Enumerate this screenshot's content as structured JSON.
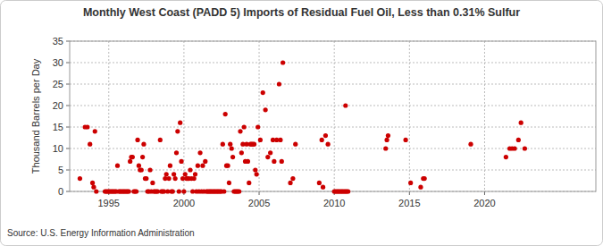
{
  "chart_data": {
    "type": "scatter",
    "title": "Monthly West Coast (PADD 5) Imports of Residual Fuel Oil, Less than 0.31% Sulfur",
    "y_label": "Thousand Barrels per Day",
    "source": "Source: U.S. Energy Information Administration",
    "color": "#cc0000",
    "marker": "circle",
    "grid": true,
    "xlim": [
      1992.4,
      2027.4
    ],
    "xticks": [
      1995,
      2000,
      2005,
      2010,
      2015,
      2020
    ],
    "ylim": [
      0,
      35
    ],
    "yticks": [
      0,
      5,
      10,
      15,
      20,
      25,
      30,
      35
    ],
    "x": [
      1993.08,
      1993.42,
      1993.58,
      1993.75,
      1993.92,
      1994.0,
      1994.08,
      1994.17,
      1994.75,
      1994.83,
      1994.92,
      1995.0,
      1995.08,
      1995.17,
      1995.25,
      1995.33,
      1995.42,
      1995.5,
      1995.58,
      1995.67,
      1995.75,
      1995.83,
      1995.92,
      1996.0,
      1996.08,
      1996.17,
      1996.25,
      1996.33,
      1996.42,
      1996.5,
      1996.58,
      1996.67,
      1996.75,
      1996.83,
      1996.92,
      1997.0,
      1997.08,
      1997.17,
      1997.25,
      1997.33,
      1997.42,
      1997.5,
      1997.58,
      1997.67,
      1997.75,
      1997.83,
      1997.92,
      1998.0,
      1998.08,
      1998.17,
      1998.25,
      1998.42,
      1998.5,
      1998.58,
      1998.67,
      1998.75,
      1998.83,
      1998.92,
      1999.0,
      1999.08,
      1999.17,
      1999.25,
      1999.33,
      1999.42,
      1999.5,
      1999.58,
      1999.67,
      1999.75,
      1999.83,
      1999.92,
      2000.0,
      2000.08,
      2000.17,
      2000.25,
      2000.33,
      2000.42,
      2000.5,
      2000.58,
      2000.67,
      2000.75,
      2000.83,
      2000.92,
      2001.0,
      2001.08,
      2001.17,
      2001.25,
      2001.33,
      2001.42,
      2001.5,
      2001.58,
      2001.67,
      2001.75,
      2001.83,
      2001.92,
      2002.0,
      2002.08,
      2002.17,
      2002.25,
      2002.33,
      2002.42,
      2002.5,
      2002.58,
      2002.67,
      2002.75,
      2002.83,
      2002.92,
      2003.0,
      2003.08,
      2003.17,
      2003.25,
      2003.33,
      2003.42,
      2003.5,
      2003.58,
      2003.67,
      2003.75,
      2003.83,
      2003.92,
      2004.0,
      2004.08,
      2004.17,
      2004.25,
      2004.33,
      2004.42,
      2004.5,
      2004.58,
      2004.67,
      2004.75,
      2004.83,
      2004.92,
      2005.08,
      2005.25,
      2005.42,
      2005.58,
      2005.75,
      2005.92,
      2006.0,
      2006.17,
      2006.33,
      2006.42,
      2006.5,
      2006.58,
      2007.08,
      2007.25,
      2007.42,
      2009.0,
      2009.17,
      2009.25,
      2009.42,
      2009.58,
      2010.0,
      2010.08,
      2010.17,
      2010.25,
      2010.33,
      2010.42,
      2010.5,
      2010.58,
      2010.67,
      2010.75,
      2010.83,
      2010.92,
      2010.75,
      2013.42,
      2013.5,
      2013.58,
      2014.75,
      2015.08,
      2015.75,
      2015.92,
      2016.0,
      2019.08,
      2021.42,
      2021.67,
      2021.83,
      2022.0,
      2022.25,
      2022.42,
      2022.67
    ],
    "values": [
      3,
      15,
      15,
      11,
      2,
      1,
      14,
      0,
      0,
      0,
      0,
      0,
      0,
      0,
      0,
      0,
      0,
      0,
      6,
      0,
      0,
      0,
      0,
      0,
      0,
      0,
      0,
      0,
      7,
      8,
      8,
      0,
      0,
      0,
      12,
      6,
      5,
      5,
      8,
      11,
      3,
      3,
      0,
      0,
      5,
      0,
      2,
      0,
      0,
      0,
      0,
      12,
      0,
      0,
      0,
      3,
      4,
      0,
      3,
      6,
      0,
      0,
      4,
      3,
      9,
      14,
      0,
      16,
      7,
      3,
      0,
      4,
      3,
      3,
      3,
      5,
      3,
      0,
      3,
      4,
      0,
      6,
      0,
      9,
      0,
      6,
      0,
      7,
      0,
      0,
      0,
      0,
      0,
      0,
      0,
      0,
      0,
      0,
      0,
      0,
      0,
      11,
      0,
      18,
      6,
      6,
      2,
      11,
      10,
      8,
      0,
      0,
      0,
      0,
      0,
      14,
      9,
      11,
      15,
      7,
      11,
      7,
      2,
      11,
      11,
      11,
      11,
      5,
      4,
      15,
      12,
      23,
      19,
      8,
      9,
      12,
      7,
      12,
      25,
      12,
      7,
      30,
      2,
      3,
      11,
      2,
      12,
      1,
      13,
      11,
      0,
      0,
      0,
      0,
      0,
      0,
      0,
      0,
      0,
      0,
      0,
      0,
      20,
      10,
      12,
      13,
      12,
      2,
      1,
      3,
      3,
      11,
      8,
      10,
      10,
      10,
      12,
      16,
      10
    ]
  }
}
